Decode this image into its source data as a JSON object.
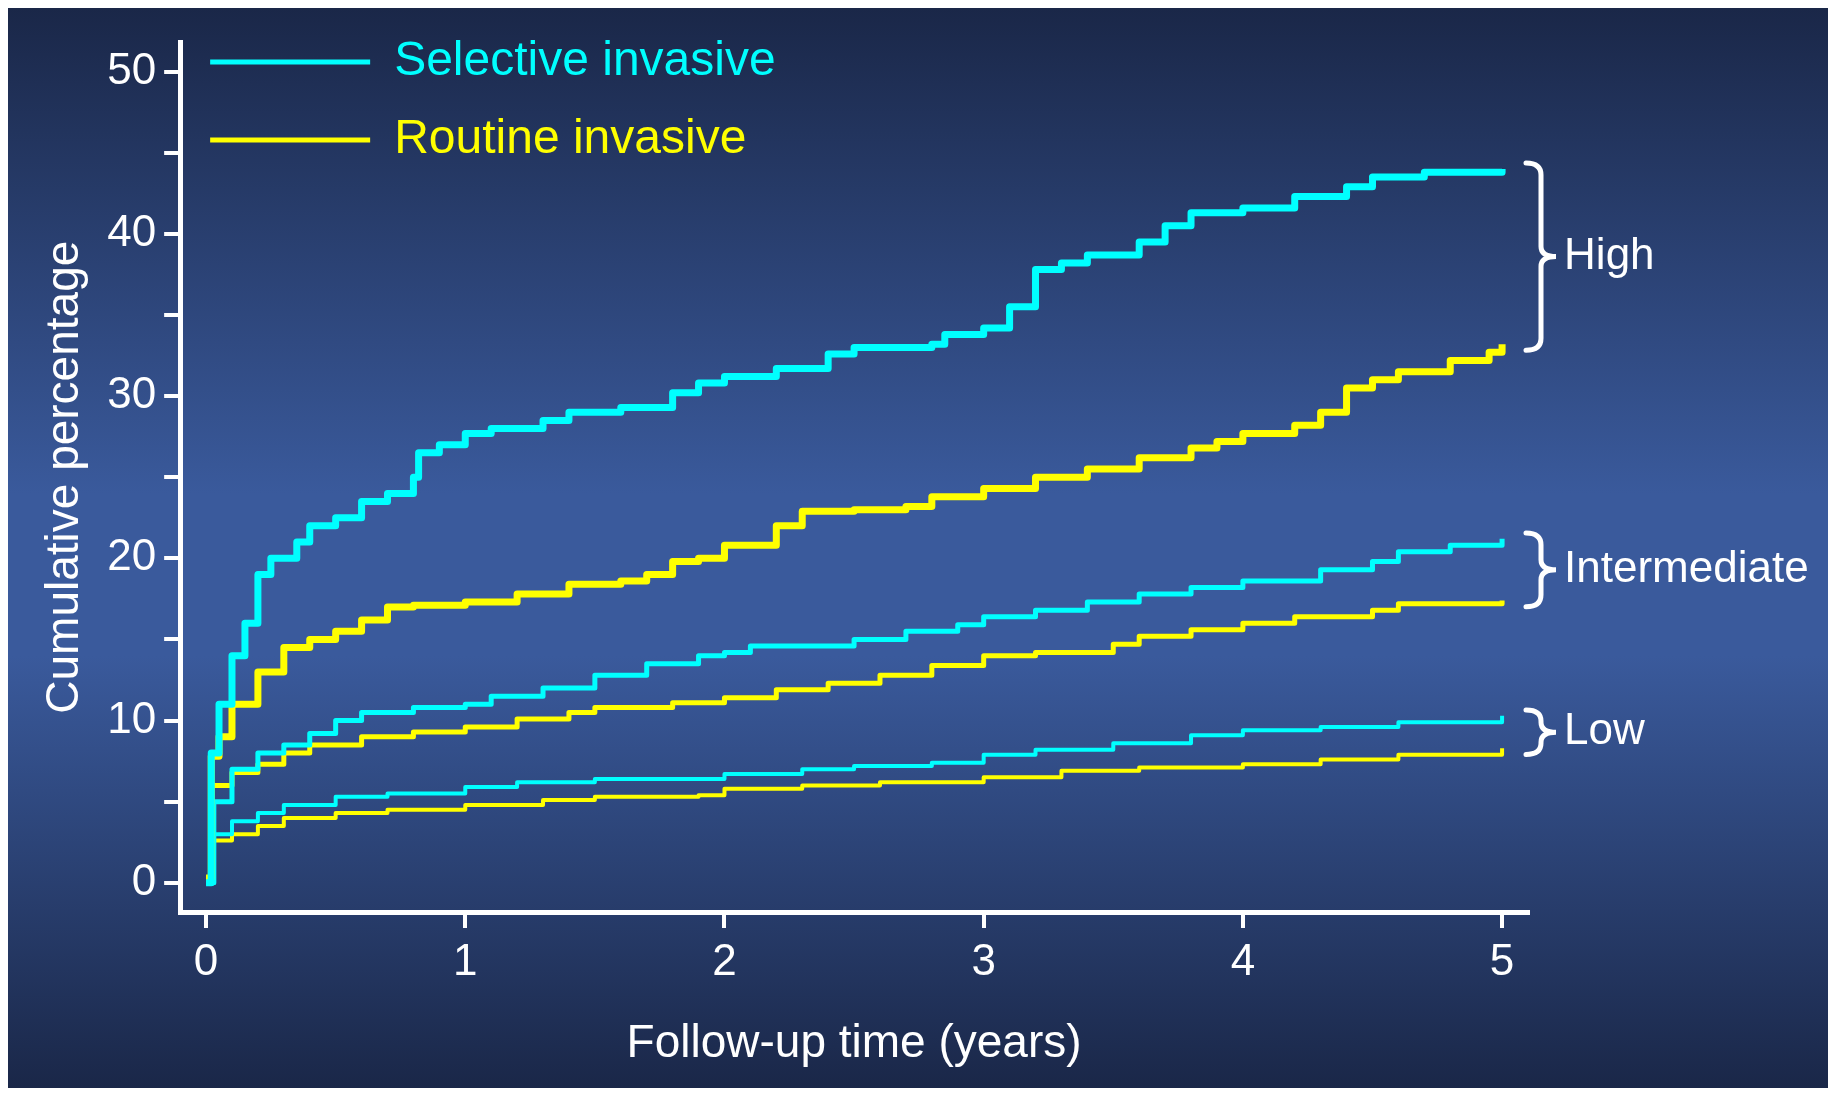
{
  "chart_data": {
    "type": "step",
    "xlabel": "Follow-up time (years)",
    "ylabel": "Cumulative percentage",
    "xlim": [
      -0.1,
      5.1
    ],
    "ylim": [
      -1.8,
      51.8
    ],
    "xticks": [
      0,
      1,
      2,
      3,
      4,
      5
    ],
    "yticks": [
      0,
      {
        "value": 5,
        "label": null
      },
      10,
      {
        "value": 15,
        "label": null
      },
      20,
      {
        "value": 25,
        "label": null
      },
      30,
      {
        "value": 35,
        "label": null
      },
      40,
      {
        "value": 45,
        "label": null
      },
      50
    ],
    "grid": false,
    "legend": "top left",
    "annotations": [
      "High",
      "Intermediate",
      "Low"
    ],
    "series": [
      {
        "name": "Selective invasive",
        "color": "#00ffff",
        "x": [
          0,
          0.02,
          0.05,
          0.1,
          0.15,
          0.2,
          0.25,
          0.35,
          0.4,
          0.5,
          0.6,
          0.7,
          0.8,
          0.82,
          0.9,
          1.0,
          1.1,
          1.3,
          1.4,
          1.6,
          1.8,
          1.9,
          2.0,
          2.2,
          2.4,
          2.5,
          2.8,
          2.85,
          3.0,
          3.1,
          3.2,
          3.3,
          3.4,
          3.6,
          3.7,
          3.8,
          4.0,
          4.2,
          4.4,
          4.5,
          4.7,
          5.0
        ],
        "values": [
          0,
          8,
          11,
          14,
          16,
          19,
          20,
          21,
          22,
          22.5,
          23.5,
          24,
          25,
          26.5,
          27,
          27.7,
          28,
          28.5,
          29,
          29.3,
          30.2,
          30.8,
          31.2,
          31.7,
          32.6,
          33,
          33.2,
          33.8,
          34.2,
          35.5,
          37.8,
          38.2,
          38.7,
          39.5,
          40.5,
          41.3,
          41.6,
          42.3,
          42.9,
          43.5,
          43.8,
          44
        ]
      },
      {
        "name": "Routine invasive",
        "color": "#ffff00",
        "x": [
          0,
          0.02,
          0.05,
          0.1,
          0.2,
          0.3,
          0.4,
          0.5,
          0.6,
          0.7,
          0.8,
          1.0,
          1.2,
          1.4,
          1.6,
          1.7,
          1.8,
          1.9,
          2.0,
          2.2,
          2.3,
          2.5,
          2.7,
          2.8,
          3.0,
          3.2,
          3.4,
          3.6,
          3.8,
          3.9,
          4.0,
          4.2,
          4.3,
          4.4,
          4.5,
          4.6,
          4.8,
          4.95,
          5.0
        ],
        "values": [
          0.3,
          7.8,
          9,
          11,
          13,
          14.5,
          15,
          15.5,
          16.2,
          17,
          17.1,
          17.3,
          17.8,
          18.4,
          18.6,
          19,
          19.8,
          20,
          20.8,
          22,
          22.9,
          23,
          23.2,
          23.8,
          24.3,
          25,
          25.5,
          26.2,
          26.8,
          27.2,
          27.7,
          28.2,
          29,
          30.5,
          31,
          31.5,
          32.2,
          32.7,
          33.2
        ]
      },
      {
        "color": "#00ffff",
        "x": [
          0,
          0.03,
          0.1,
          0.2,
          0.3,
          0.4,
          0.5,
          0.6,
          0.8,
          1.0,
          1.1,
          1.3,
          1.5,
          1.7,
          1.9,
          2.0,
          2.1,
          2.5,
          2.7,
          2.9,
          3.0,
          3.2,
          3.4,
          3.6,
          3.8,
          4.0,
          4.3,
          4.5,
          4.6,
          4.8,
          5.0
        ],
        "values": [
          0,
          5,
          7,
          8,
          8.5,
          9.2,
          10,
          10.5,
          10.8,
          11,
          11.5,
          12,
          12.8,
          13.5,
          14,
          14.2,
          14.6,
          15,
          15.5,
          15.9,
          16.4,
          16.8,
          17.3,
          17.8,
          18.2,
          18.6,
          19.3,
          19.8,
          20.4,
          20.8,
          21.2
        ]
      },
      {
        "color": "#ffff00",
        "x": [
          0,
          0.02,
          0.1,
          0.2,
          0.3,
          0.4,
          0.6,
          0.8,
          1.0,
          1.2,
          1.4,
          1.5,
          1.8,
          2.0,
          2.2,
          2.4,
          2.6,
          2.8,
          3.0,
          3.2,
          3.5,
          3.6,
          3.8,
          4.0,
          4.2,
          4.5,
          4.6,
          5.0
        ],
        "values": [
          0.3,
          6,
          6.8,
          7.3,
          8,
          8.5,
          9,
          9.3,
          9.6,
          10.1,
          10.5,
          10.8,
          11.1,
          11.4,
          11.9,
          12.3,
          12.8,
          13.4,
          14,
          14.2,
          14.7,
          15.2,
          15.6,
          16,
          16.4,
          16.8,
          17.2,
          17.4
        ]
      },
      {
        "color": "#00ffff",
        "x": [
          0,
          0.03,
          0.1,
          0.2,
          0.3,
          0.5,
          0.7,
          1.0,
          1.2,
          1.5,
          2.0,
          2.3,
          2.5,
          2.8,
          3.0,
          3.2,
          3.5,
          3.8,
          4.0,
          4.3,
          4.6,
          5.0
        ],
        "values": [
          0,
          3,
          3.8,
          4.3,
          4.8,
          5.3,
          5.5,
          5.9,
          6.2,
          6.4,
          6.7,
          7,
          7.2,
          7.4,
          7.9,
          8.2,
          8.6,
          9.1,
          9.4,
          9.6,
          9.9,
          10.3
        ]
      },
      {
        "color": "#ffff00",
        "x": [
          0,
          0.03,
          0.1,
          0.2,
          0.3,
          0.5,
          0.7,
          1.0,
          1.3,
          1.5,
          1.9,
          2.0,
          2.3,
          2.6,
          3.0,
          3.3,
          3.6,
          4.0,
          4.3,
          4.6,
          5.0
        ],
        "values": [
          0.3,
          2.6,
          3,
          3.5,
          4,
          4.3,
          4.5,
          4.8,
          5.1,
          5.3,
          5.4,
          5.8,
          6,
          6.2,
          6.5,
          6.9,
          7.1,
          7.3,
          7.6,
          7.9,
          8.3
        ]
      }
    ]
  }
}
